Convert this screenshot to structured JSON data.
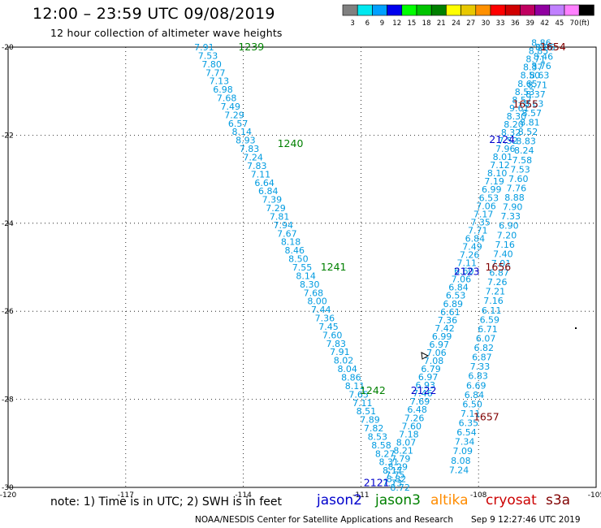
{
  "title": "12:00 – 23:59 UTC 09/08/2019",
  "subtitle": "12 hour collection of altimeter wave heights",
  "colorbar": {
    "unit": "(ft)",
    "bins": [
      {
        "label": "3",
        "color": "#808080"
      },
      {
        "label": "6",
        "color": "#00e8f0"
      },
      {
        "label": "9",
        "color": "#00a0ff"
      },
      {
        "label": "12",
        "color": "#0000ee"
      },
      {
        "label": "15",
        "color": "#00ff00"
      },
      {
        "label": "18",
        "color": "#00c400"
      },
      {
        "label": "21",
        "color": "#008000"
      },
      {
        "label": "24",
        "color": "#ffff00"
      },
      {
        "label": "27",
        "color": "#e8c800"
      },
      {
        "label": "30",
        "color": "#ff9000"
      },
      {
        "label": "33",
        "color": "#ff0000"
      },
      {
        "label": "36",
        "color": "#d00000"
      },
      {
        "label": "39",
        "color": "#c00060"
      },
      {
        "label": "42",
        "color": "#9000a0"
      },
      {
        "label": "45",
        "color": "#c080ff"
      },
      {
        "label": "70",
        "color": "#ff80ff"
      },
      {
        "label": "",
        "color": "#000000"
      }
    ]
  },
  "note": "note: 1) Time is in UTC; 2) SWH is in feet",
  "satellites": [
    {
      "name": "jason2",
      "color": "#0000cc"
    },
    {
      "name": "jason3",
      "color": "#008000"
    },
    {
      "name": "altika",
      "color": "#ff8c00"
    },
    {
      "name": "cryosat",
      "color": "#cc0000"
    },
    {
      "name": "s3a",
      "color": "#800000"
    }
  ],
  "footer_left": "NOAA/NESDIS Center for Satellite Applications and Research",
  "footer_right": "Sep  9 12:27:46 UTC 2019",
  "chart_data": {
    "type": "scatter",
    "xlim": [
      -120,
      -105
    ],
    "ylim": [
      -30,
      -20
    ],
    "x_ticks": [
      "-120",
      "-117",
      "-114",
      "-111",
      "-108",
      "-105"
    ],
    "y_ticks": [
      "-20",
      "-22",
      "-24",
      "-26",
      "-28",
      "-30"
    ],
    "grid": true,
    "value_color": "#009be0",
    "time_labels": [
      {
        "text": "1239",
        "x": -113.8,
        "y": -20.0,
        "color": "#008000"
      },
      {
        "text": "1240",
        "x": -112.8,
        "y": -22.2,
        "color": "#008000"
      },
      {
        "text": "1241",
        "x": -111.7,
        "y": -25.0,
        "color": "#008000"
      },
      {
        "text": "1242",
        "x": -110.7,
        "y": -27.8,
        "color": "#008000"
      },
      {
        "text": "2121",
        "x": -110.6,
        "y": -29.9,
        "color": "#0000cc"
      },
      {
        "text": "2122",
        "x": -109.4,
        "y": -27.8,
        "color": "#0000cc"
      },
      {
        "text": "2123",
        "x": -108.3,
        "y": -25.1,
        "color": "#0000cc"
      },
      {
        "text": "2124",
        "x": -107.4,
        "y": -22.1,
        "color": "#0000cc"
      },
      {
        "text": "1654",
        "x": -106.1,
        "y": -20.0,
        "color": "#800000"
      },
      {
        "text": "1655",
        "x": -106.8,
        "y": -21.3,
        "color": "#800000"
      },
      {
        "text": "1656",
        "x": -107.5,
        "y": -25.0,
        "color": "#800000"
      },
      {
        "text": "1657",
        "x": -107.8,
        "y": -28.4,
        "color": "#800000"
      }
    ],
    "tracks": [
      {
        "name": "jason3 descending",
        "start": [
          -115.0,
          -20.0
        ],
        "end": [
          -110.0,
          -30.0
        ],
        "values": [
          "7.91",
          "7.53",
          "7.80",
          "7.77",
          "7.13",
          "6.98",
          "7.68",
          "7.49",
          "7.29",
          "6.57",
          "8.14",
          "8.93",
          "7.83",
          "7.24",
          "7.83",
          "7.11",
          "6.64",
          "6.84",
          "7.39",
          "7.29",
          "7.81",
          "7.94",
          "7.67",
          "8.18",
          "8.46",
          "8.50",
          "7.55",
          "8.14",
          "8.30",
          "7.68",
          "8.00",
          "7.44",
          "7.36",
          "7.45",
          "7.60",
          "7.83",
          "7.91",
          "8.02",
          "8.04",
          "8.86",
          "8.11",
          "7.65",
          "7.11",
          "8.51",
          "7.89",
          "7.82",
          "8.53",
          "8.58",
          "8.27",
          "8.31",
          "8.17",
          "8.82",
          "8.72"
        ]
      },
      {
        "name": "jason2 ascending",
        "start": [
          -110.2,
          -29.9
        ],
        "end": [
          -106.4,
          -19.9
        ],
        "values": [
          "7.73",
          "7.75",
          "8.29",
          "7.79",
          "8.21",
          "8.07",
          "7.18",
          "7.60",
          "7.26",
          "6.48",
          "7.69",
          "7.46",
          "6.93",
          "6.97",
          "6.79",
          "7.08",
          "7.06",
          "6.97",
          "6.99",
          "7.42",
          "7.36",
          "6.61",
          "6.89",
          "6.53",
          "6.84",
          "7.06",
          "6.60",
          "7.11",
          "7.26",
          "7.49",
          "6.84",
          "7.71",
          "7.35",
          "7.17",
          "7.06",
          "6.53",
          "6.99",
          "7.19",
          "8.10",
          "7.12",
          "8.01",
          "7.96",
          "7.52",
          "8.32",
          "8.20",
          "8.30",
          "9.61",
          "8.57",
          "8.53",
          "8.65",
          "8.50",
          "8.37",
          "8.71",
          "8.85",
          "8.86"
        ]
      },
      {
        "name": "s3a ascending",
        "start": [
          -108.5,
          -29.6
        ],
        "end": [
          -106.3,
          -20.0
        ],
        "values": [
          "7.24",
          "8.08",
          "7.09",
          "7.34",
          "6.54",
          "6.35",
          "7.11",
          "6.50",
          "6.84",
          "6.69",
          "6.83",
          "7.33",
          "6.87",
          "6.82",
          "6.07",
          "6.71",
          "6.59",
          "6.11",
          "7.16",
          "7.21",
          "7.26",
          "6.87",
          "7.01",
          "7.40",
          "7.16",
          "7.20",
          "6.90",
          "7.33",
          "7.90",
          "8.88",
          "7.76",
          "7.60",
          "7.53",
          "7.58",
          "8.24",
          "8.83",
          "8.52",
          "8.81",
          "8.57",
          "8.63",
          "8.37",
          "8.71",
          "8.63",
          "8.76",
          "8.46",
          "8.86"
        ]
      }
    ]
  }
}
